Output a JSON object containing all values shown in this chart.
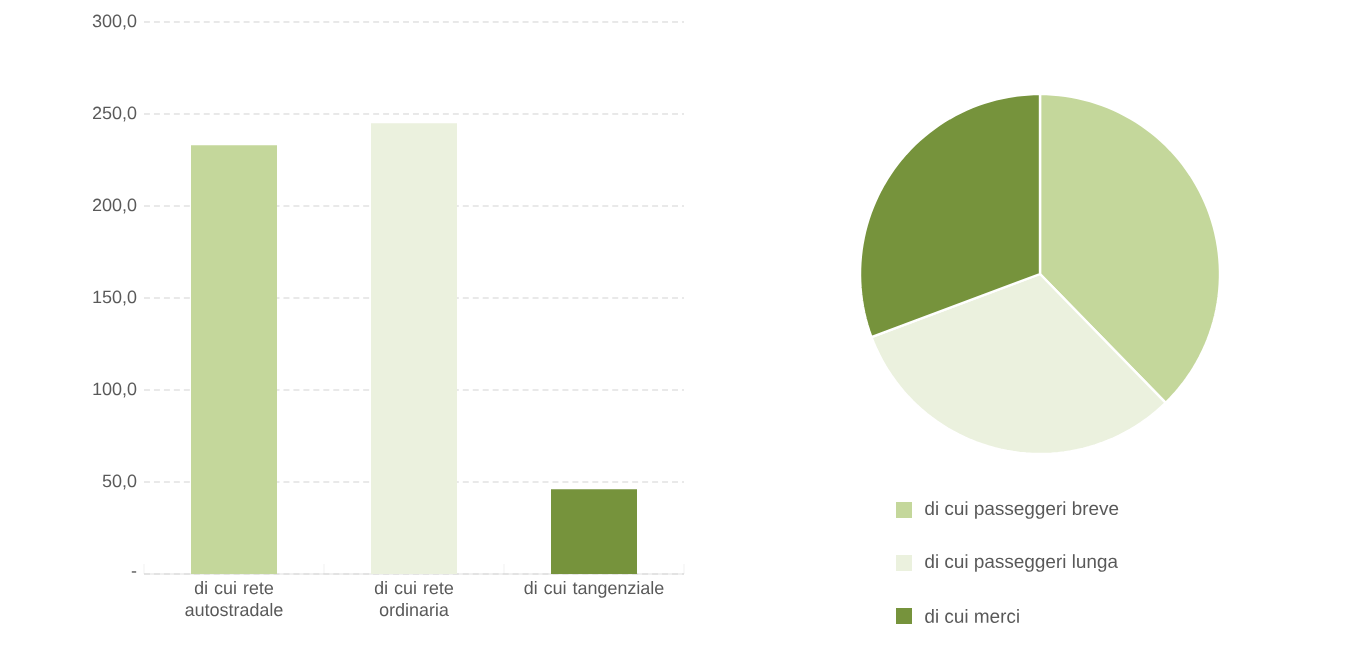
{
  "chart_data": [
    {
      "type": "bar",
      "categories": [
        "di cui rete autostradale",
        "di cui rete ordinaria",
        "di cui tangenziale"
      ],
      "values": [
        233,
        245,
        46
      ],
      "colors": [
        "#c4d79b",
        "#ebf1de",
        "#76933c"
      ],
      "ylim": [
        0,
        300
      ],
      "yticks": [
        {
          "value": 0,
          "label": "-"
        },
        {
          "value": 50,
          "label": "50,0"
        },
        {
          "value": 100,
          "label": "100,0"
        },
        {
          "value": 150,
          "label": "150,0"
        },
        {
          "value": 200,
          "label": "200,0"
        },
        {
          "value": 250,
          "label": "250,0"
        },
        {
          "value": 300,
          "label": "300,0"
        }
      ],
      "grid": "y"
    },
    {
      "type": "pie",
      "categories": [
        "di cui passeggeri breve",
        "di cui passeggeri lunga",
        "di cui merci"
      ],
      "values": [
        37.7,
        31.6,
        30.7
      ],
      "colors": [
        "#c4d79b",
        "#ebf1de",
        "#76933c"
      ],
      "legend": "bottom"
    }
  ]
}
